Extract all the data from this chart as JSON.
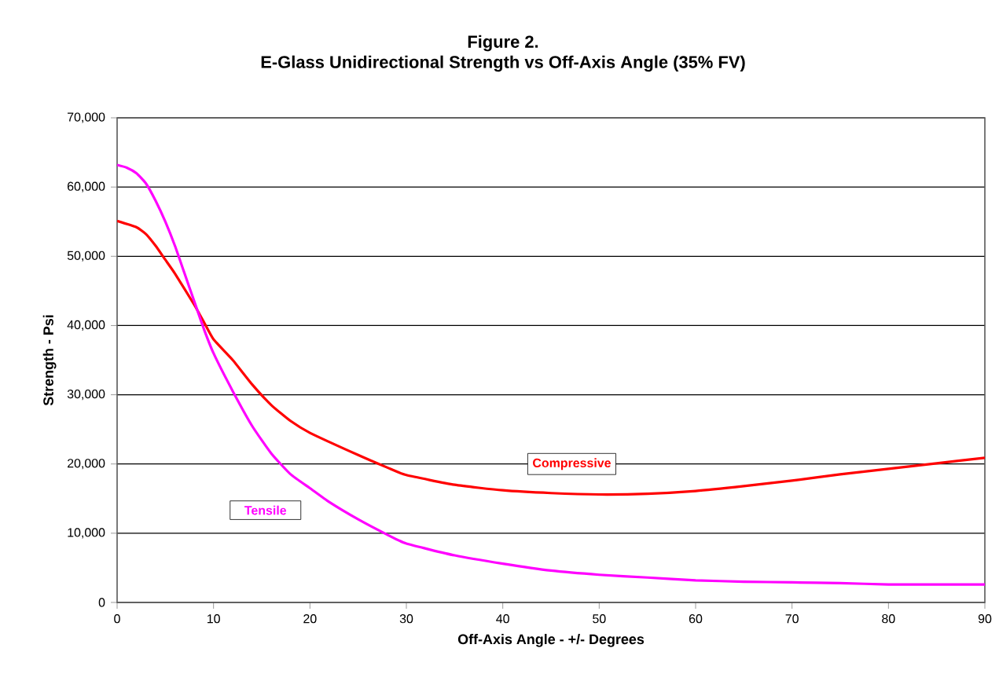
{
  "chart_data": {
    "type": "line",
    "title": "Figure 2.",
    "subtitle": "E-Glass Unidirectional Strength vs Off-Axis Angle (35% FV)",
    "xlabel": "Off-Axis Angle - +/- Degrees",
    "ylabel": "Strength - Psi",
    "series": [
      {
        "name": "Compressive",
        "color": "#ff0000",
        "x": [
          0,
          2,
          3,
          4,
          5,
          6,
          8,
          9,
          10,
          12,
          14,
          16,
          18,
          20,
          25,
          28,
          30,
          35,
          40,
          45,
          50,
          55,
          60,
          65,
          70,
          75,
          80,
          85,
          90
        ],
        "values": [
          55100,
          54200,
          53200,
          51500,
          49500,
          47500,
          43000,
          40500,
          38000,
          35000,
          31500,
          28500,
          26200,
          24500,
          21300,
          19500,
          18400,
          17000,
          16200,
          15800,
          15600,
          15700,
          16100,
          16800,
          17600,
          18500,
          19300,
          20100,
          20900
        ]
      },
      {
        "name": "Tensile",
        "color": "#ff00ff",
        "x": [
          0,
          1,
          2,
          3,
          4,
          5,
          6,
          7,
          8,
          9,
          10,
          12,
          14,
          16,
          18,
          20,
          22,
          25,
          28,
          30,
          35,
          40,
          45,
          50,
          55,
          60,
          65,
          70,
          75,
          80,
          85,
          90
        ],
        "values": [
          63200,
          62800,
          62000,
          60500,
          58000,
          55000,
          51500,
          47500,
          43500,
          39500,
          36000,
          30500,
          25500,
          21500,
          18500,
          16500,
          14500,
          12000,
          9800,
          8500,
          6800,
          5600,
          4600,
          4000,
          3600,
          3200,
          3000,
          2900,
          2800,
          2600,
          2600,
          2600
        ]
      }
    ],
    "xlim": [
      0,
      90
    ],
    "xticks": [
      0,
      10,
      20,
      30,
      40,
      50,
      60,
      70,
      80,
      90
    ],
    "ylim": [
      0,
      70000
    ],
    "yticks": [
      0,
      {
        "value": 10000,
        "label": "10,000"
      },
      {
        "value": 20000,
        "label": "20,000"
      },
      {
        "value": 30000,
        "label": "30,000"
      },
      {
        "value": 40000,
        "label": "40,000"
      },
      {
        "value": 50000,
        "label": "50,000"
      },
      {
        "value": 60000,
        "label": "60,000"
      },
      {
        "value": 70000,
        "label": "70,000"
      }
    ],
    "grid": "y",
    "marker": "none",
    "line_style": "solid"
  }
}
